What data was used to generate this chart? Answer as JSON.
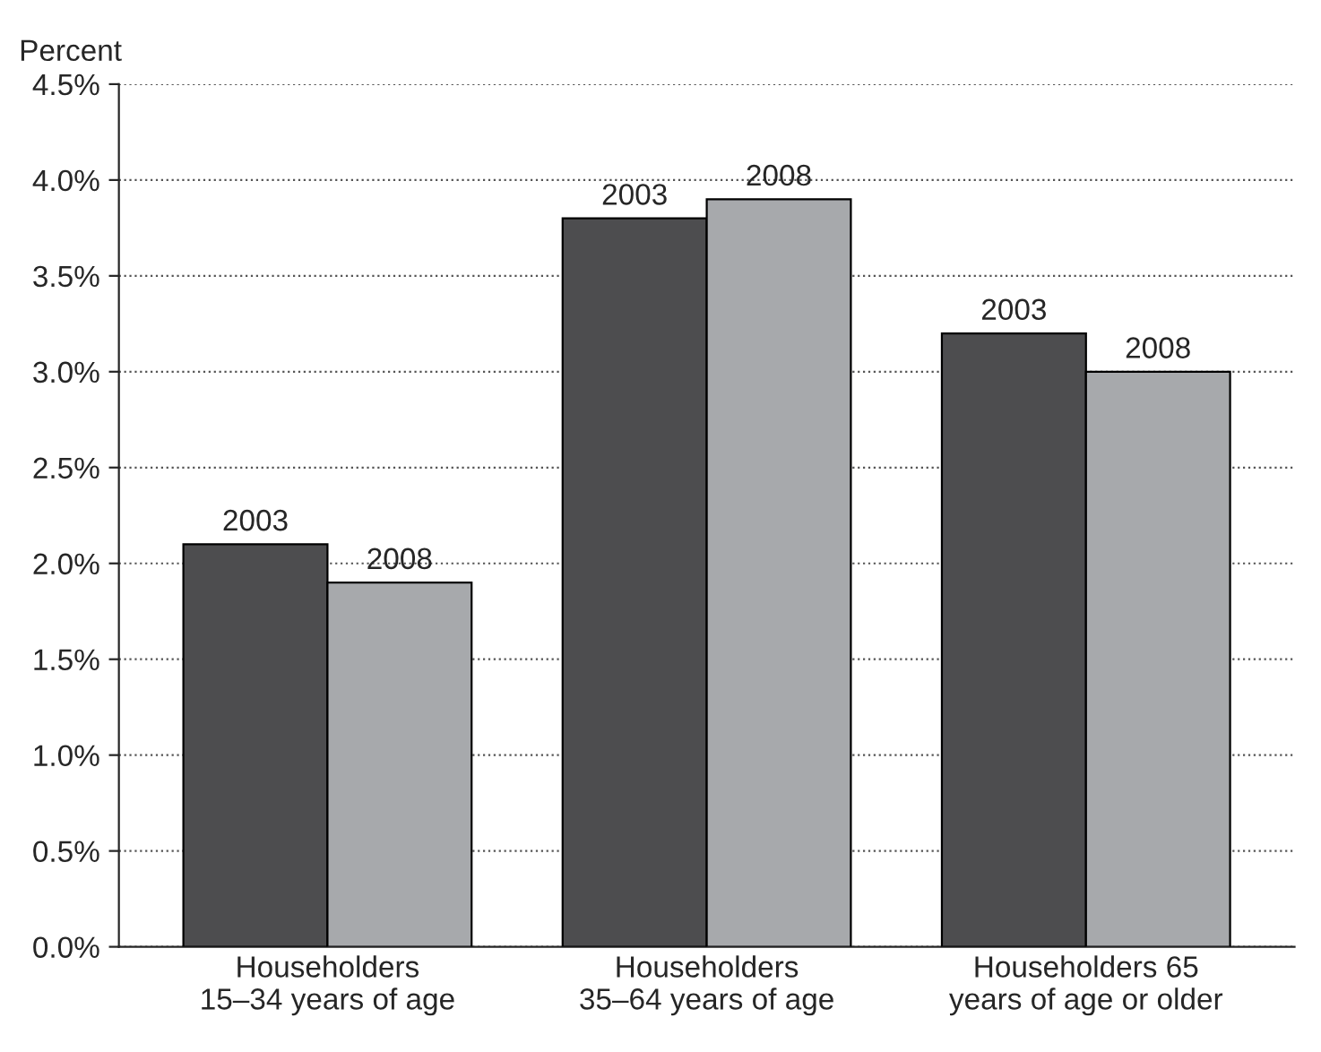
{
  "chart_data": {
    "type": "bar",
    "ylabel": "Percent",
    "categories": [
      "Householders\n15–34 years of age",
      "Householders\n35–64 years of age",
      "Householders 65\nyears of age or older"
    ],
    "series": [
      {
        "name": "2003",
        "color": "#4d4d4f",
        "values": [
          2.1,
          3.8,
          3.2
        ]
      },
      {
        "name": "2008",
        "color": "#a7a9ac",
        "values": [
          1.9,
          3.9,
          3.0
        ]
      }
    ],
    "ylim": [
      0,
      4.5
    ],
    "yticks": [
      {
        "value": 0,
        "label": "0.0%"
      },
      {
        "value": 0.5,
        "label": "0.5%"
      },
      {
        "value": 1,
        "label": "1.0%"
      },
      {
        "value": 1.5,
        "label": "1.5%"
      },
      {
        "value": 2,
        "label": "2.0%"
      },
      {
        "value": 2.5,
        "label": "2.5%"
      },
      {
        "value": 3,
        "label": "3.0%"
      },
      {
        "value": 3.5,
        "label": "3.5%"
      },
      {
        "value": 4,
        "label": "4.0%"
      },
      {
        "value": 4.5,
        "label": "4.5%"
      }
    ],
    "grid": "y",
    "legend": false
  }
}
